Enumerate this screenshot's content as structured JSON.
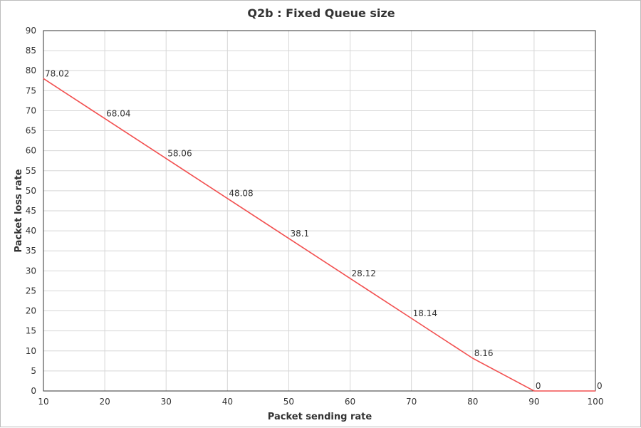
{
  "chart_data": {
    "type": "line",
    "title": "Q2b : Fixed Queue size",
    "xlabel": "Packet sending rate",
    "ylabel": "Packet loss rate",
    "x": [
      10,
      20,
      30,
      40,
      50,
      60,
      70,
      80,
      90,
      100
    ],
    "series": [
      {
        "values": [
          78.02,
          68.04,
          58.06,
          48.08,
          38.1,
          28.12,
          18.14,
          8.16,
          0,
          0
        ],
        "labels": [
          "78.02",
          "68.04",
          "58.06",
          "48.08",
          "38.1",
          "28.12",
          "18.14",
          "8.16",
          "0",
          "0"
        ],
        "color": "#f25050"
      }
    ],
    "xlim": [
      10,
      100
    ],
    "ylim": [
      0,
      90
    ],
    "xticks": [
      10,
      20,
      30,
      40,
      50,
      60,
      70,
      80,
      90,
      100
    ],
    "yticks": [
      0,
      5,
      10,
      15,
      20,
      25,
      30,
      35,
      40,
      45,
      50,
      55,
      60,
      65,
      70,
      75,
      80,
      85,
      90
    ],
    "grid": true,
    "legend": "none"
  }
}
